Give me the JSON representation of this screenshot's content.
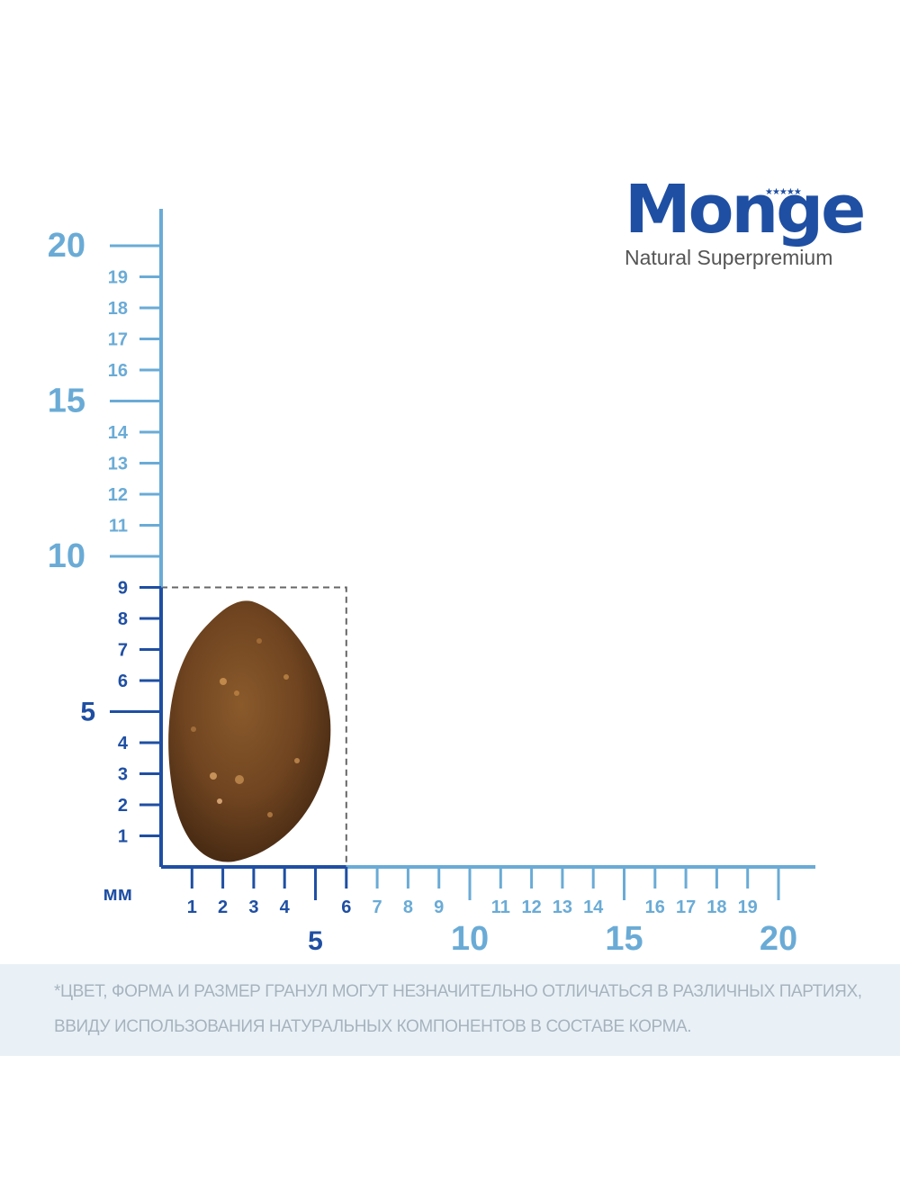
{
  "brand": {
    "name": "Monge",
    "tagline": "Natural Superpremium",
    "stars_icon": "five-stars-icon",
    "color": "#1f4fa3"
  },
  "scale": {
    "unit": "мм",
    "x_ticks_small": [
      "1",
      "2",
      "3",
      "4",
      "6",
      "7",
      "8",
      "9",
      "11",
      "12",
      "13",
      "14",
      "16",
      "17",
      "18",
      "19"
    ],
    "x_ticks_major": [
      "5",
      "10",
      "15",
      "20"
    ],
    "y_ticks_small": [
      "1",
      "2",
      "3",
      "4",
      "6",
      "7",
      "8",
      "9",
      "11",
      "12",
      "13",
      "14",
      "16",
      "17",
      "18",
      "19"
    ],
    "y_ticks_major": [
      "5",
      "10",
      "15",
      "20"
    ],
    "colors": {
      "dark": "#1f4fa3",
      "light": "#6aabd6"
    }
  },
  "kibble": {
    "width_mm": 6,
    "height_mm": 9,
    "image_icon": "kibble-icon"
  },
  "note": {
    "line1": "*ЦВЕТ, ФОРМА И РАЗМЕР ГРАНУЛ МОГУТ НЕЗНАЧИТЕЛЬНО ОТЛИЧАТЬСЯ В РАЗЛИЧНЫХ ПАРТИЯХ,",
    "line2": "ВВИДУ ИСПОЛЬЗОВАНИЯ НАТУРАЛЬНЫХ КОМПОНЕНТОВ В СОСТАВЕ КОРМА."
  }
}
